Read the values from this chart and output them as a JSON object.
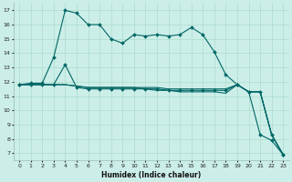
{
  "xlabel": "Humidex (Indice chaleur)",
  "bg_color": "#cceee8",
  "grid_color": "#aaddcc",
  "line_color": "#006666",
  "xlim": [
    -0.5,
    23.5
  ],
  "ylim": [
    6.5,
    17.5
  ],
  "yticks": [
    7,
    8,
    9,
    10,
    11,
    12,
    13,
    14,
    15,
    16,
    17
  ],
  "xticks": [
    0,
    1,
    2,
    3,
    4,
    5,
    6,
    7,
    8,
    9,
    10,
    11,
    12,
    13,
    14,
    15,
    16,
    17,
    18,
    19,
    20,
    21,
    22,
    23
  ],
  "line1_x": [
    0,
    1,
    2,
    3,
    4,
    5,
    6,
    7,
    8,
    9,
    10,
    11,
    12,
    13,
    14,
    15,
    16,
    17,
    18,
    19,
    20,
    21,
    22,
    23
  ],
  "line1_y": [
    11.8,
    11.9,
    11.9,
    13.7,
    17.0,
    16.8,
    16.0,
    16.0,
    15.0,
    14.7,
    15.3,
    15.2,
    15.3,
    15.2,
    15.3,
    15.8,
    15.3,
    14.1,
    12.5,
    11.8,
    11.3,
    8.3,
    7.9,
    6.9
  ],
  "line2_x": [
    0,
    1,
    2,
    3,
    4,
    5,
    6,
    7,
    8,
    9,
    10,
    11,
    12,
    13,
    14,
    15,
    16,
    17,
    18,
    19,
    20,
    21,
    22,
    23
  ],
  "line2_y": [
    11.8,
    11.8,
    11.8,
    11.8,
    13.2,
    11.6,
    11.5,
    11.5,
    11.5,
    11.5,
    11.5,
    11.5,
    11.5,
    11.4,
    11.4,
    11.4,
    11.4,
    11.4,
    11.4,
    11.8,
    11.3,
    11.3,
    8.3,
    6.9
  ],
  "line3_x": [
    0,
    1,
    2,
    3,
    4,
    5,
    6,
    7,
    8,
    9,
    10,
    11,
    12,
    13,
    14,
    15,
    16,
    17,
    18,
    19,
    20,
    21,
    22,
    23
  ],
  "line3_y": [
    11.8,
    11.8,
    11.8,
    11.8,
    11.8,
    11.7,
    11.6,
    11.6,
    11.6,
    11.6,
    11.6,
    11.6,
    11.6,
    11.5,
    11.5,
    11.5,
    11.5,
    11.5,
    11.5,
    11.8,
    11.3,
    11.3,
    8.3,
    6.9
  ],
  "line4_x": [
    0,
    1,
    2,
    3,
    4,
    5,
    6,
    7,
    8,
    9,
    10,
    11,
    12,
    13,
    14,
    15,
    16,
    17,
    18,
    19,
    20,
    21,
    22,
    23
  ],
  "line4_y": [
    11.8,
    11.8,
    11.8,
    11.8,
    11.8,
    11.7,
    11.6,
    11.6,
    11.6,
    11.6,
    11.6,
    11.5,
    11.4,
    11.4,
    11.3,
    11.3,
    11.3,
    11.3,
    11.2,
    11.8,
    11.3,
    11.3,
    8.3,
    6.9
  ],
  "marker_x1": [
    0,
    1,
    2,
    3,
    4,
    5,
    6,
    7,
    8,
    9,
    10,
    11,
    12,
    13,
    14,
    15,
    16,
    17,
    18,
    19,
    20,
    21,
    22,
    23
  ],
  "marker_y1": [
    11.8,
    11.9,
    11.9,
    13.7,
    17.0,
    16.8,
    16.0,
    16.0,
    15.0,
    14.7,
    15.3,
    15.2,
    15.3,
    15.2,
    15.3,
    15.8,
    15.3,
    14.1,
    12.5,
    11.8,
    11.3,
    8.3,
    7.9,
    6.9
  ]
}
